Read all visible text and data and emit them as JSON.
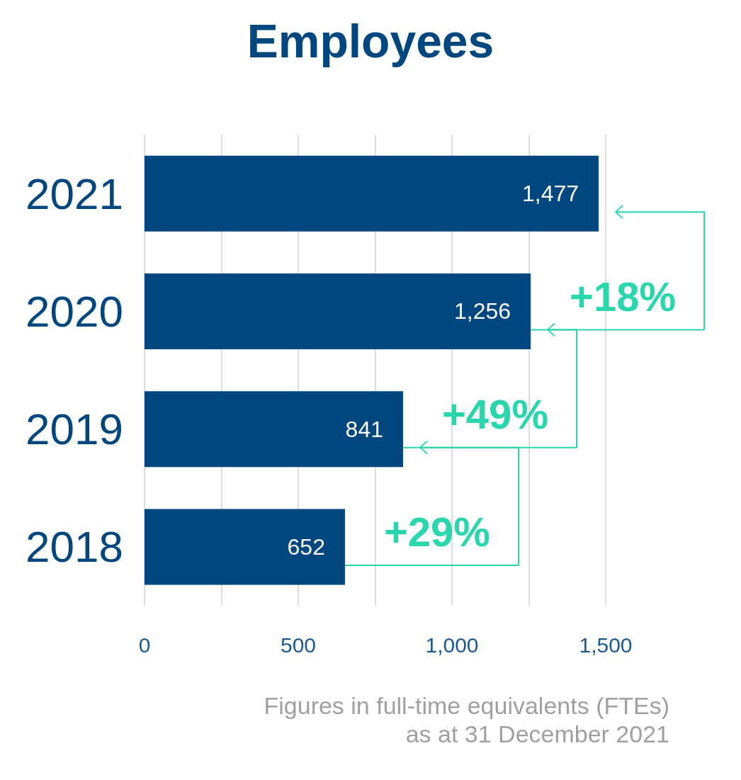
{
  "chart_data": {
    "type": "bar",
    "title": "Employees",
    "orientation": "horizontal",
    "categories": [
      "2021",
      "2020",
      "2019",
      "2018"
    ],
    "values": [
      1477,
      1256,
      841,
      652
    ],
    "value_labels": [
      "1,477",
      "1,256",
      "841",
      "652"
    ],
    "color": "#00467f",
    "xlim": [
      0,
      1500
    ],
    "xticks": [
      0,
      {
        "value": 250,
        "label": null
      },
      500,
      {
        "value": 750,
        "label": null
      },
      "1,000",
      {
        "value": 1250,
        "label": null
      },
      "1,500"
    ],
    "grid": "x",
    "annotations": [
      {
        "text": "+18%",
        "x": 1477,
        "y": "2021"
      },
      {
        "text": "+49%",
        "x": 1256,
        "y": "2020"
      },
      {
        "text": "+29%",
        "x": 841,
        "y": "2019"
      },
      "Figures in full-time equivalents (FTEs)\nas at 31 December 2021"
    ]
  }
}
